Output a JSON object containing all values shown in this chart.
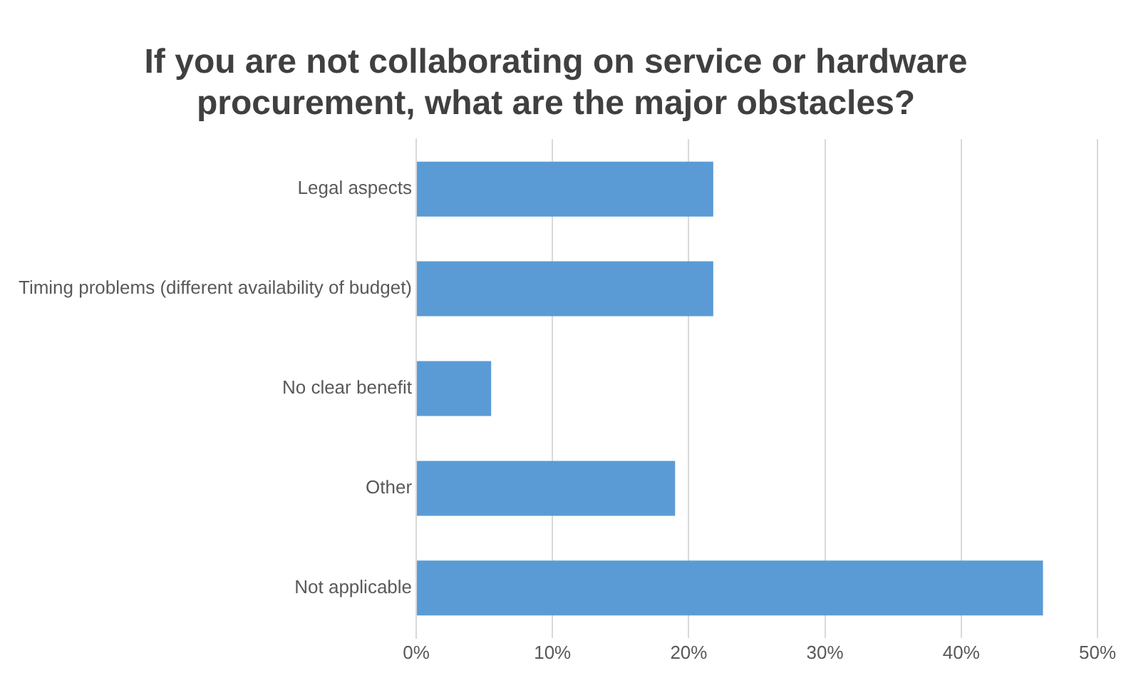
{
  "chart_data": {
    "type": "bar",
    "orientation": "horizontal",
    "title": "If you are not collaborating on service or hardware procurement, what are the major obstacles?",
    "categories": [
      "Legal aspects",
      "Timing problems (different availability of budget)",
      "No clear benefit",
      "Other",
      "Not applicable"
    ],
    "values": [
      21.8,
      21.8,
      5.5,
      19,
      46
    ],
    "color": "#5b9bd5",
    "xlim": [
      0,
      50
    ],
    "xticks": [
      {
        "value": 0,
        "label": "0%"
      },
      {
        "value": 10,
        "label": "10%"
      },
      {
        "value": 20,
        "label": "20%"
      },
      {
        "value": 30,
        "label": "30%"
      },
      {
        "value": 40,
        "label": "40%"
      },
      {
        "value": 50,
        "label": "50%"
      }
    ],
    "grid": "x",
    "legend": false
  }
}
